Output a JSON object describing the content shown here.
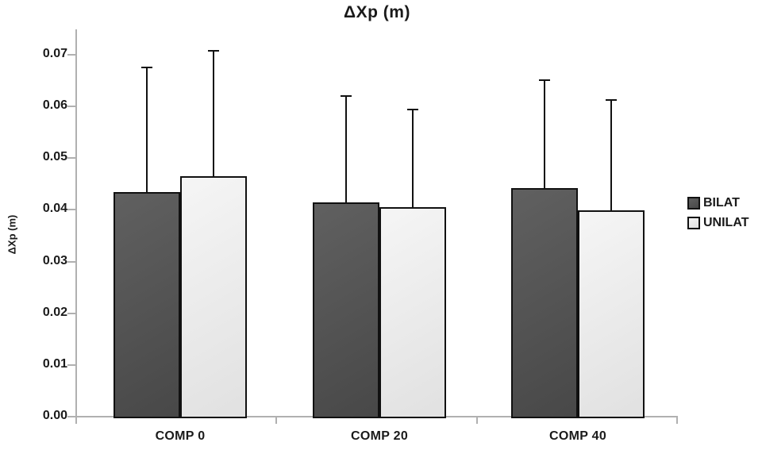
{
  "chart_data": {
    "type": "bar",
    "title": "ΔXp (m)",
    "ylabel": "ΔXp (m)",
    "xlabel": "",
    "categories": [
      "COMP 0",
      "COMP 20",
      "COMP 40"
    ],
    "series": [
      {
        "name": "BILAT",
        "values": [
          0.0434,
          0.0414,
          0.0442
        ],
        "errors_up": [
          0.0241,
          0.0206,
          0.0209
        ],
        "color": "#4e4e4e"
      },
      {
        "name": "UNILAT",
        "values": [
          0.0465,
          0.0405,
          0.0399
        ],
        "errors_up": [
          0.0243,
          0.0189,
          0.0213
        ],
        "color": "#f4f4f4"
      }
    ],
    "ylim": [
      0,
      0.075
    ],
    "yticks": [
      "0.00",
      "0.01",
      "0.02",
      "0.03",
      "0.04",
      "0.05",
      "0.06",
      "0.07"
    ],
    "grid": false,
    "legend_position": "right",
    "error_bars": "upper-only"
  },
  "colors": {
    "bar_border": "#111111",
    "axis": "#b0b0b0",
    "text": "#1a1a1a",
    "background": "#ffffff"
  }
}
